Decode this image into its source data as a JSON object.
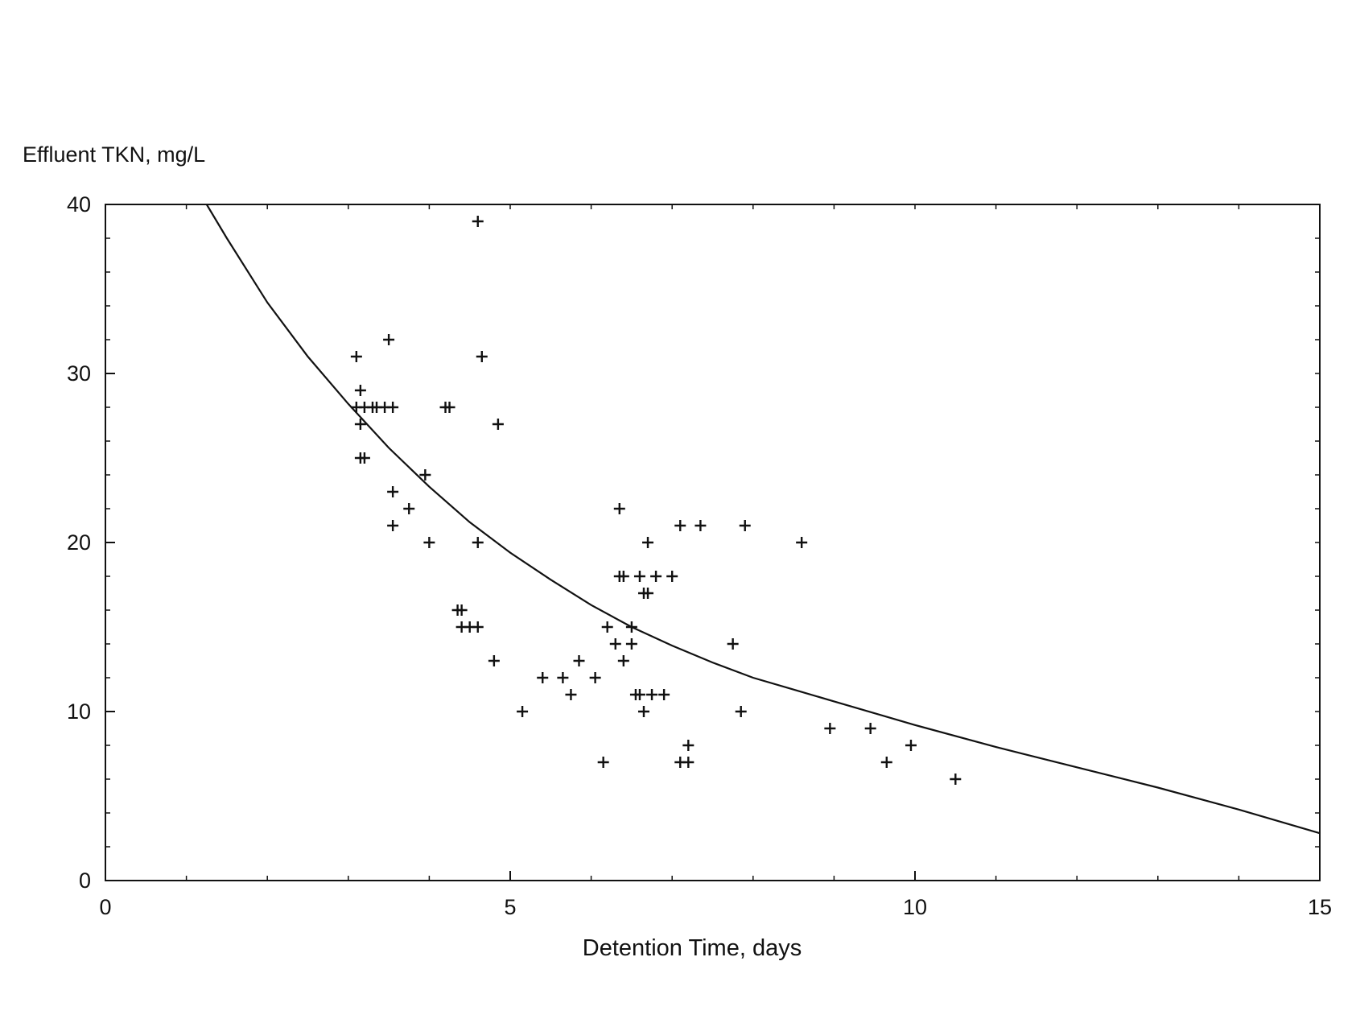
{
  "chart_data": {
    "type": "scatter",
    "ylabel": "Effluent  TKN,  mg/L",
    "xlabel": "Detention Time, days",
    "xlim": [
      0,
      15
    ],
    "ylim": [
      0,
      40
    ],
    "x_ticks": [
      0,
      5,
      10,
      15
    ],
    "x_tick_labels": [
      "0",
      "5",
      "10",
      "15"
    ],
    "y_ticks": [
      0,
      10,
      20,
      30,
      40
    ],
    "y_tick_labels": [
      "0",
      "10",
      "20",
      "30",
      "40"
    ],
    "marker": "plus",
    "grid": false,
    "legend": "none",
    "colors": {
      "ink": "#111111",
      "background": "#ffffff"
    },
    "series": [
      {
        "type": "scatter",
        "points": [
          [
            4.6,
            39
          ],
          [
            3.1,
            31
          ],
          [
            3.5,
            32
          ],
          [
            4.65,
            31
          ],
          [
            3.15,
            29
          ],
          [
            3.1,
            28
          ],
          [
            3.2,
            28
          ],
          [
            3.3,
            28
          ],
          [
            3.35,
            28
          ],
          [
            3.45,
            28
          ],
          [
            3.55,
            28
          ],
          [
            4.2,
            28
          ],
          [
            4.25,
            28
          ],
          [
            3.15,
            27
          ],
          [
            4.85,
            27
          ],
          [
            3.15,
            25
          ],
          [
            3.2,
            25
          ],
          [
            3.95,
            24
          ],
          [
            3.55,
            23
          ],
          [
            3.75,
            22
          ],
          [
            3.55,
            21
          ],
          [
            4.0,
            20
          ],
          [
            4.6,
            20
          ],
          [
            6.35,
            22
          ],
          [
            7.1,
            21
          ],
          [
            7.35,
            21
          ],
          [
            7.9,
            21
          ],
          [
            8.6,
            20
          ],
          [
            6.7,
            20
          ],
          [
            6.35,
            18
          ],
          [
            6.4,
            18
          ],
          [
            6.6,
            18
          ],
          [
            6.8,
            18
          ],
          [
            7.0,
            18
          ],
          [
            6.65,
            17
          ],
          [
            6.7,
            17
          ],
          [
            4.35,
            16
          ],
          [
            4.4,
            16
          ],
          [
            4.4,
            15
          ],
          [
            4.5,
            15
          ],
          [
            4.6,
            15
          ],
          [
            6.2,
            15
          ],
          [
            6.5,
            15
          ],
          [
            6.3,
            14
          ],
          [
            6.5,
            14
          ],
          [
            7.75,
            14
          ],
          [
            4.8,
            13
          ],
          [
            5.85,
            13
          ],
          [
            6.4,
            13
          ],
          [
            5.4,
            12
          ],
          [
            5.65,
            12
          ],
          [
            6.05,
            12
          ],
          [
            5.75,
            11
          ],
          [
            6.55,
            11
          ],
          [
            6.6,
            11
          ],
          [
            6.75,
            11
          ],
          [
            6.9,
            11
          ],
          [
            5.15,
            10
          ],
          [
            6.65,
            10
          ],
          [
            7.85,
            10
          ],
          [
            8.95,
            9
          ],
          [
            9.45,
            9
          ],
          [
            9.95,
            8
          ],
          [
            7.2,
            8
          ],
          [
            6.15,
            7
          ],
          [
            7.1,
            7
          ],
          [
            7.2,
            7
          ],
          [
            9.65,
            7
          ],
          [
            10.5,
            6
          ]
        ]
      },
      {
        "type": "line",
        "points": [
          [
            1.25,
            40
          ],
          [
            1.5,
            38.0
          ],
          [
            2,
            34.2
          ],
          [
            2.5,
            31.0
          ],
          [
            3,
            28.2
          ],
          [
            3.5,
            25.6
          ],
          [
            4,
            23.3
          ],
          [
            4.5,
            21.2
          ],
          [
            5,
            19.4
          ],
          [
            5.5,
            17.8
          ],
          [
            6,
            16.3
          ],
          [
            6.5,
            15.0
          ],
          [
            7,
            13.9
          ],
          [
            7.5,
            12.9
          ],
          [
            8,
            12.0
          ],
          [
            8.5,
            11.3
          ],
          [
            9,
            10.6
          ],
          [
            10,
            9.2
          ],
          [
            11,
            7.9
          ],
          [
            12,
            6.7
          ],
          [
            13,
            5.5
          ],
          [
            14,
            4.2
          ],
          [
            15,
            2.8
          ]
        ]
      }
    ]
  }
}
